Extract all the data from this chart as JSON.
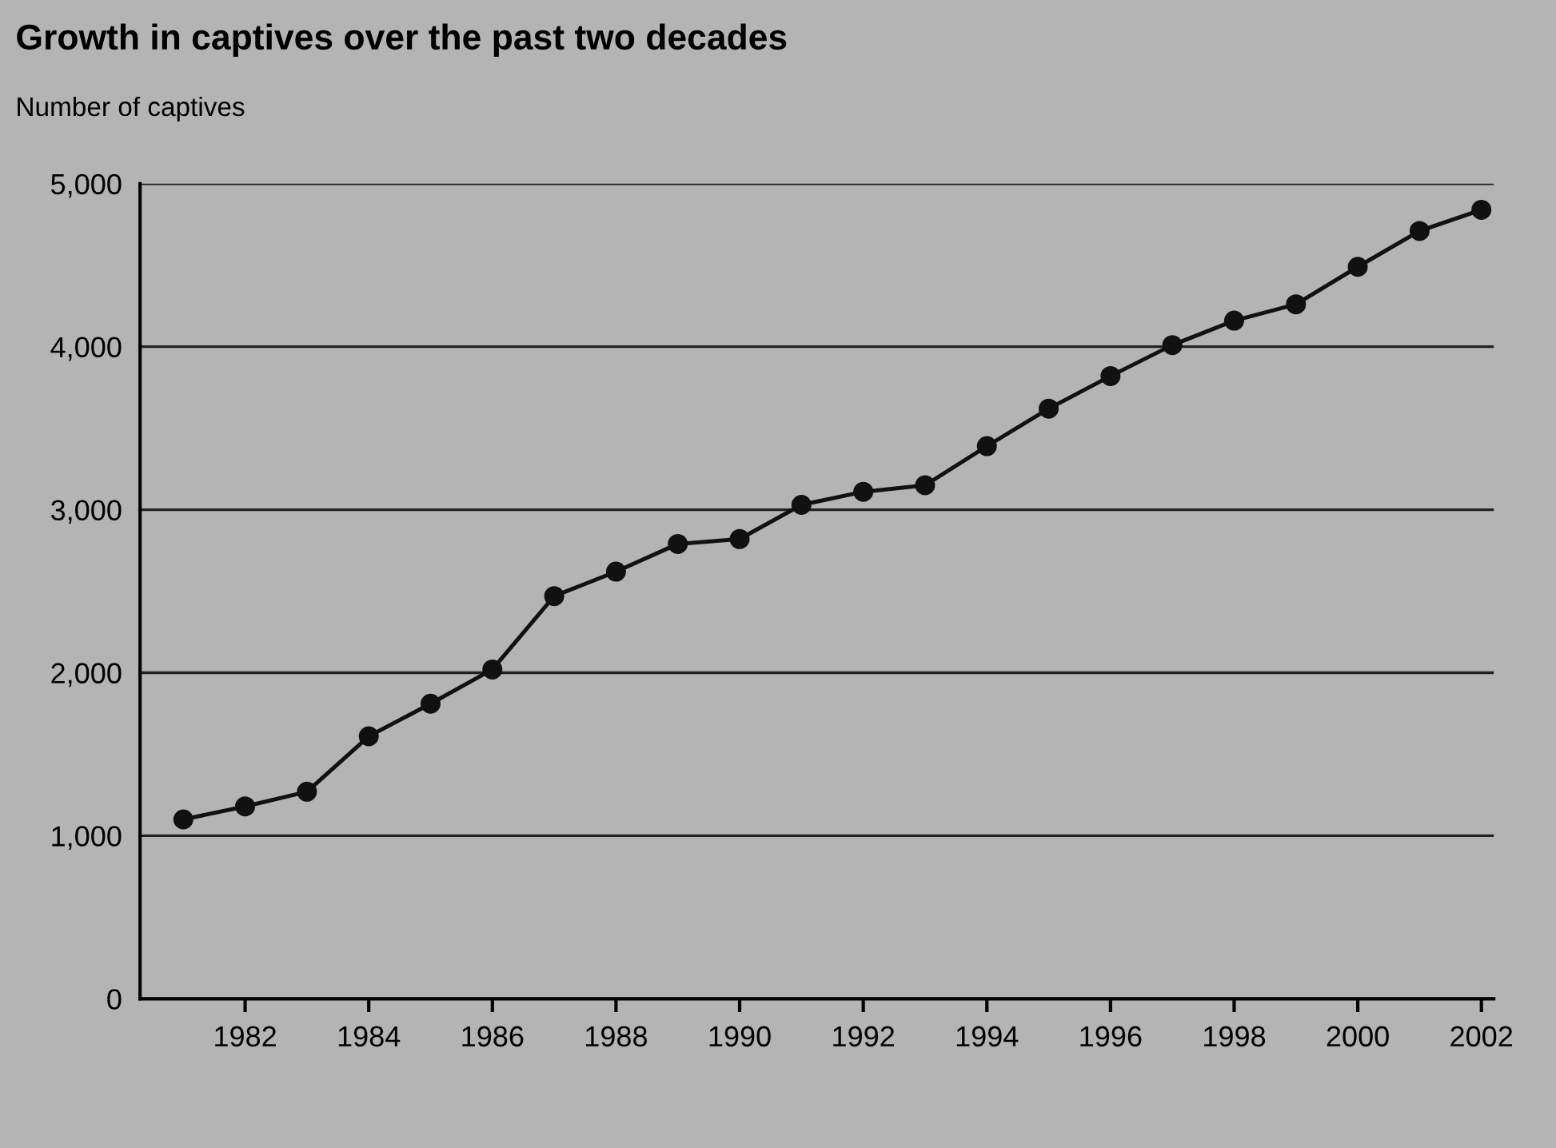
{
  "chart_data": {
    "type": "line",
    "title": "Growth in captives over the past two decades",
    "ylabel": "Number of captives",
    "x": [
      1981,
      1982,
      1983,
      1984,
      1985,
      1986,
      1987,
      1988,
      1989,
      1990,
      1991,
      1992,
      1993,
      1994,
      1995,
      1996,
      1997,
      1998,
      1999,
      2000,
      2001,
      2002
    ],
    "series": [
      {
        "color": "#111111",
        "values": [
          1100,
          1180,
          1270,
          1610,
          1810,
          2020,
          2470,
          2620,
          2790,
          2820,
          3030,
          3110,
          3150,
          3390,
          3620,
          3820,
          4010,
          4160,
          4260,
          4490,
          4710,
          4840
        ]
      }
    ],
    "xlim": [
      1980.3,
      2002.2
    ],
    "xticks": [
      1982,
      1984,
      1986,
      1988,
      1990,
      1992,
      1994,
      1996,
      1998,
      2000,
      2002
    ],
    "ylim": [
      0,
      5000
    ],
    "yticks": [
      {
        "value": 0,
        "label": "0"
      },
      {
        "value": 1000,
        "label": "1,000"
      },
      {
        "value": 2000,
        "label": "2,000"
      },
      {
        "value": 3000,
        "label": "3,000"
      },
      {
        "value": 4000,
        "label": "4,000"
      },
      {
        "value": 5000,
        "label": "5,000"
      }
    ],
    "grid": "y",
    "marker": "circle",
    "line_style": "solid"
  }
}
